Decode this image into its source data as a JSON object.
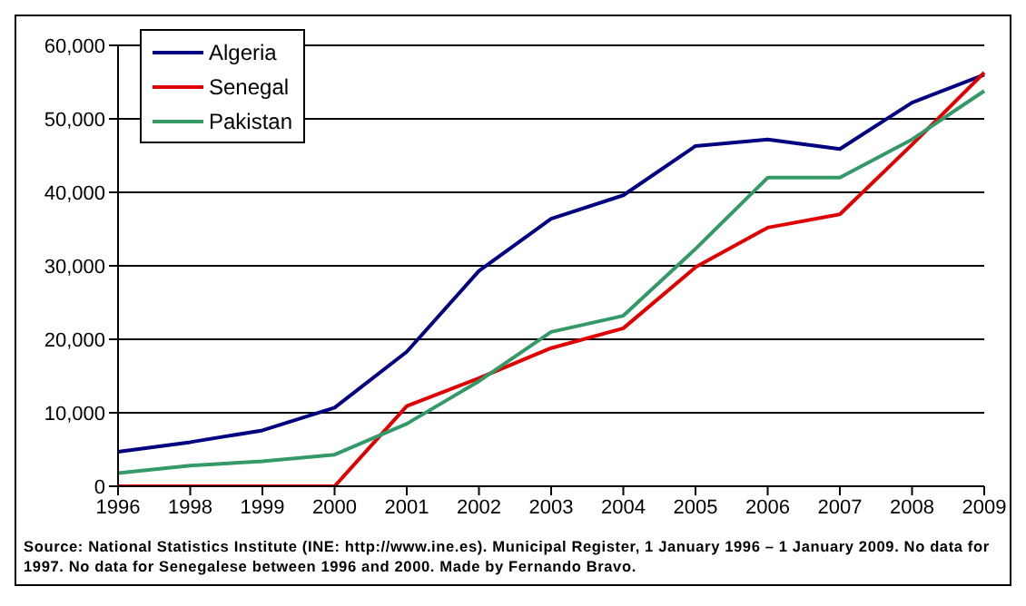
{
  "chart_data": {
    "type": "line",
    "categories": [
      "1996",
      "1998",
      "1999",
      "2000",
      "2001",
      "2002",
      "2003",
      "2004",
      "2005",
      "2006",
      "2007",
      "2008",
      "2009"
    ],
    "series": [
      {
        "name": "Algeria",
        "color": "#000080",
        "values": [
          4700,
          6000,
          7600,
          10700,
          18300,
          29300,
          36400,
          39600,
          46300,
          47200,
          45900,
          52200,
          56000
        ]
      },
      {
        "name": "Senegal",
        "color": "#e00000",
        "values": [
          0,
          0,
          0,
          0,
          10900,
          14700,
          18800,
          21500,
          29800,
          35200,
          37000,
          46500,
          56300
        ]
      },
      {
        "name": "Pakistan",
        "color": "#339966",
        "values": [
          1800,
          2800,
          3400,
          4300,
          8500,
          14300,
          21000,
          23200,
          32300,
          42000,
          42000,
          47200,
          53800
        ]
      }
    ],
    "ylim": [
      0,
      60000
    ],
    "yticks": [
      {
        "value": 0,
        "label": "0"
      },
      {
        "value": 10000,
        "label": "10,000"
      },
      {
        "value": 20000,
        "label": "20,000"
      },
      {
        "value": 30000,
        "label": "30,000"
      },
      {
        "value": 40000,
        "label": "40,000"
      },
      {
        "value": 50000,
        "label": "50,000"
      },
      {
        "value": 60000,
        "label": "60,000"
      }
    ],
    "grid": "y",
    "legend": "top left",
    "marker": "none",
    "line_style": "solid",
    "annotations": [
      "Source: National Statistics Institute (INE: http://www.ine.es). Municipal Register, 1 January 1996 – 1 January 2009. No data for 1997. No data for Senegalese between 1996 and 2000. Made by Fernando Bravo."
    ]
  }
}
